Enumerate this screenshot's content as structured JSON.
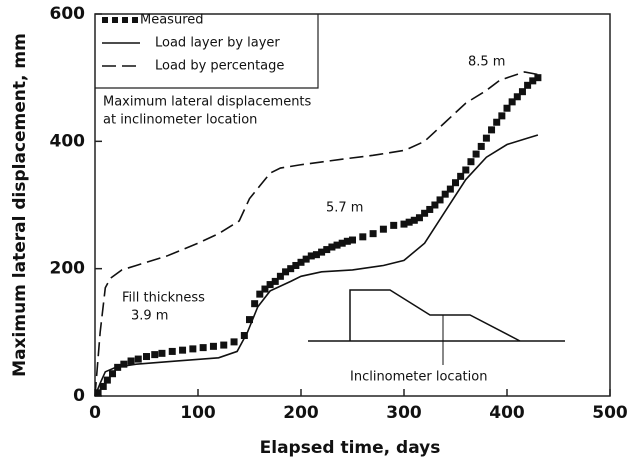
{
  "chart_data": {
    "type": "line",
    "xlabel": "Elapsed time, days",
    "ylabel": "Maximum lateral displacement, mm",
    "xlim": [
      0,
      500
    ],
    "xticks": [
      0,
      100,
      200,
      300,
      400,
      500
    ],
    "ylim": [
      0,
      600
    ],
    "yticks": [
      0,
      200,
      400,
      600
    ],
    "legend": "upper left",
    "series": [
      {
        "name": "Measured",
        "color": "#111111",
        "style": "markers",
        "x": [
          3,
          8,
          12,
          17,
          22,
          28,
          35,
          42,
          50,
          58,
          65,
          75,
          85,
          95,
          105,
          115,
          125,
          135,
          145,
          150,
          155,
          160,
          165,
          170,
          175,
          180,
          185,
          190,
          195,
          200,
          205,
          210,
          215,
          220,
          225,
          230,
          235,
          240,
          245,
          250,
          260,
          270,
          280,
          290,
          300,
          305,
          310,
          315,
          320,
          325,
          330,
          335,
          340,
          345,
          350,
          355,
          360,
          365,
          370,
          375,
          380,
          385,
          390,
          395,
          400,
          405,
          410,
          415,
          420,
          425,
          430
        ],
        "values": [
          5,
          15,
          25,
          35,
          45,
          50,
          55,
          58,
          62,
          65,
          67,
          70,
          72,
          74,
          76,
          78,
          80,
          85,
          95,
          120,
          145,
          160,
          168,
          175,
          180,
          188,
          195,
          200,
          205,
          210,
          215,
          220,
          222,
          226,
          230,
          234,
          237,
          240,
          243,
          245,
          250,
          255,
          262,
          268,
          270,
          273,
          276,
          280,
          287,
          293,
          300,
          308,
          317,
          325,
          335,
          345,
          355,
          368,
          380,
          392,
          405,
          418,
          430,
          440,
          452,
          462,
          470,
          478,
          488,
          495,
          500
        ]
      },
      {
        "name": "Load layer by layer",
        "color": "#111111",
        "style": "solid",
        "x": [
          0,
          5,
          10,
          20,
          40,
          80,
          120,
          138,
          148,
          158,
          170,
          190,
          200,
          220,
          250,
          280,
          300,
          320,
          340,
          360,
          380,
          400,
          420,
          430
        ],
        "values": [
          0,
          20,
          38,
          45,
          50,
          55,
          60,
          70,
          100,
          140,
          165,
          180,
          188,
          195,
          198,
          205,
          213,
          240,
          290,
          340,
          375,
          395,
          405,
          410
        ]
      },
      {
        "name": "Load by percentage",
        "color": "#111111",
        "style": "dashed",
        "x": [
          0,
          5,
          10,
          15,
          26,
          40,
          70,
          100,
          120,
          140,
          150,
          160,
          170,
          180,
          199,
          240,
          270,
          301,
          320,
          340,
          360,
          380,
          393,
          417,
          430
        ],
        "values": [
          0,
          100,
          170,
          185,
          198,
          205,
          220,
          240,
          255,
          275,
          310,
          330,
          350,
          358,
          363,
          372,
          378,
          386,
          400,
          430,
          460,
          480,
          496,
          509,
          505
        ]
      }
    ],
    "annotations": [
      "Maximum lateral displacements",
      "at inclinometer location",
      "8.5 m",
      "5.7 m",
      "Fill thickness",
      "3.9 m",
      "Inclinometer location"
    ]
  }
}
